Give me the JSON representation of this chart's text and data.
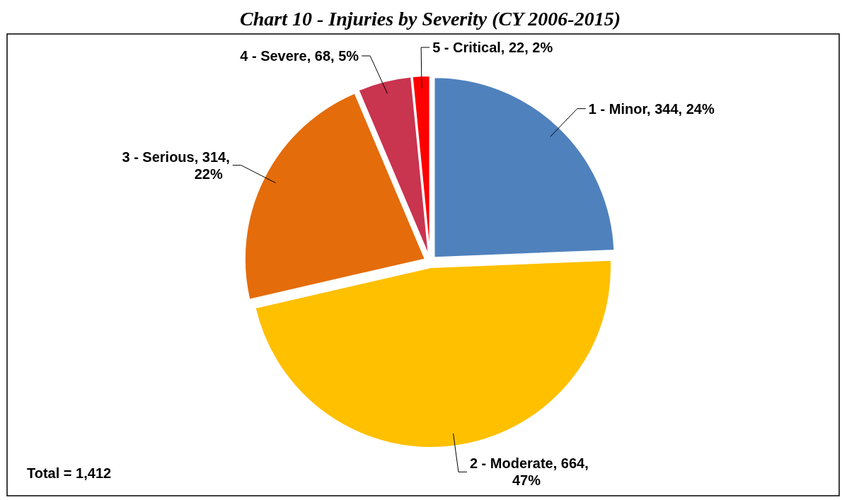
{
  "chart_data": {
    "type": "pie",
    "title": "Chart 10 - Injuries by Severity (CY 2006-2015)",
    "categories": [
      "1 - Minor",
      "2 - Moderate",
      "3 - Serious",
      "4 - Severe",
      "5 - Critical"
    ],
    "values": [
      344,
      664,
      314,
      68,
      22
    ],
    "colors": [
      "#4f81bd",
      "#ffc000",
      "#e46c0a",
      "#c9344f",
      "#ff0000"
    ],
    "value_labels": [
      "344, 24%",
      "664, 47%",
      "314, 22%",
      "68, 5%",
      "22, 2%"
    ],
    "legend": false,
    "annotations": [
      "Total = 1,412"
    ]
  }
}
